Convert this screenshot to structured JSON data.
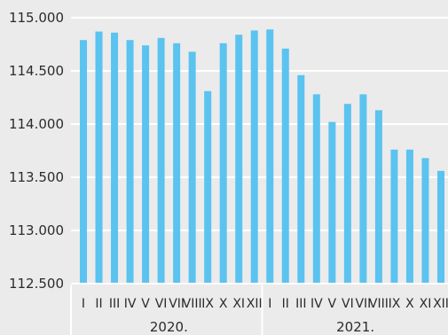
{
  "chart_data": {
    "type": "bar",
    "title": "",
    "xlabel": "",
    "ylabel": "",
    "ylim": [
      112500,
      115000
    ],
    "yticks": [
      112500,
      113000,
      113500,
      114000,
      114500,
      115000
    ],
    "ytick_labels": [
      "112.500",
      "113.000",
      "113.500",
      "114.000",
      "114.500",
      "115.000"
    ],
    "grid": true,
    "bar_color": "#5bc3ef",
    "groups": [
      {
        "label": "2020.",
        "count": 12
      },
      {
        "label": "2021.",
        "count": 12
      }
    ],
    "categories": [
      "I",
      "II",
      "III",
      "IV",
      "V",
      "VI",
      "VII",
      "VIII",
      "IX",
      "X",
      "XI",
      "XII",
      "I",
      "II",
      "III",
      "IV",
      "V",
      "VI",
      "VII",
      "VIII",
      "IX",
      "X",
      "XI",
      "XII"
    ],
    "values": [
      114790,
      114870,
      114860,
      114790,
      114740,
      114810,
      114760,
      114680,
      114310,
      114760,
      114840,
      114880,
      114890,
      114710,
      114460,
      114280,
      114020,
      114190,
      114280,
      114130,
      113760,
      113760,
      113680,
      113560
    ]
  }
}
